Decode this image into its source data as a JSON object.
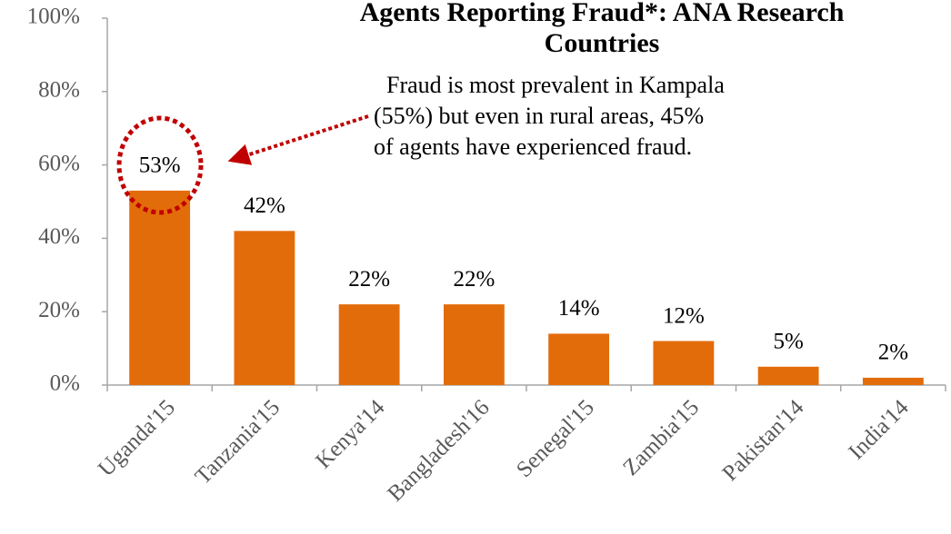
{
  "chart_data": {
    "type": "bar",
    "title": [
      "Agents Reporting Fraud*: ANA Research",
      "Countries"
    ],
    "annotation": [
      "Fraud is most prevalent in Kampala",
      "(55%) but even in rural areas, 45%",
      "of agents have experienced fraud."
    ],
    "categories": [
      "Uganda'15",
      "Tanzania'15",
      "Kenya'14",
      "Bangladesh'16",
      "Senegal'15",
      "Zambia'15",
      "Pakistan'14",
      "India'14"
    ],
    "values": [
      53,
      42,
      22,
      22,
      14,
      12,
      5,
      2
    ],
    "value_labels": [
      "53%",
      "42%",
      "22%",
      "22%",
      "14%",
      "12%",
      "5%",
      "2%"
    ],
    "color": "#e36c0a",
    "ylim": [
      0,
      100
    ],
    "yticks": [
      {
        "value": 0,
        "label": "0%"
      },
      {
        "value": 20,
        "label": "20%"
      },
      {
        "value": 40,
        "label": "40%"
      },
      {
        "value": 60,
        "label": "60%"
      },
      {
        "value": 80,
        "label": "80%"
      },
      {
        "value": 100,
        "label": "100%"
      }
    ],
    "grid": false
  }
}
